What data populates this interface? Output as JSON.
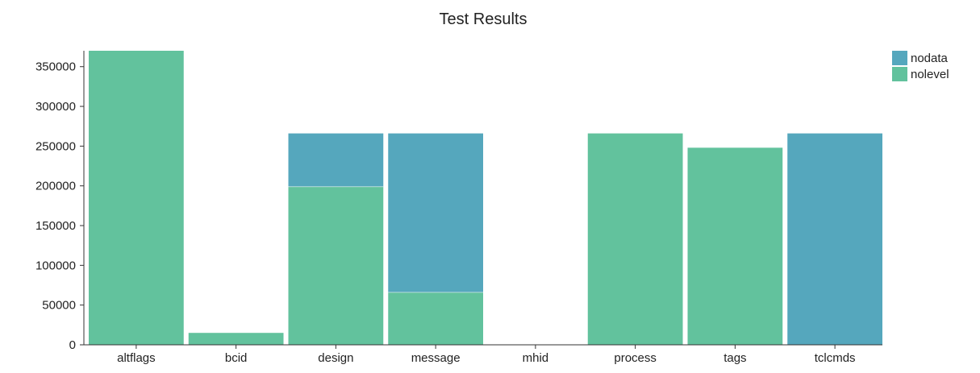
{
  "chart_data": {
    "type": "bar",
    "stacked": true,
    "title": "Test Results",
    "xlabel": "",
    "ylabel": "",
    "categories": [
      "altflags",
      "bcid",
      "design",
      "message",
      "mhid",
      "process",
      "tags",
      "tclcmds"
    ],
    "series": [
      {
        "name": "nolevel",
        "color": "#62c29d",
        "values": [
          370000,
          15000,
          199000,
          66000,
          0,
          266000,
          248000,
          0
        ]
      },
      {
        "name": "nodata",
        "color": "#55a7bd",
        "values": [
          0,
          0,
          67000,
          200000,
          0,
          0,
          0,
          266000
        ]
      }
    ],
    "legend_order": [
      "nodata",
      "nolevel"
    ],
    "yticks": [
      0,
      50000,
      100000,
      150000,
      200000,
      250000,
      300000,
      350000
    ],
    "ylim": [
      0,
      370000
    ],
    "grid": false,
    "legend_position": "top-right"
  }
}
